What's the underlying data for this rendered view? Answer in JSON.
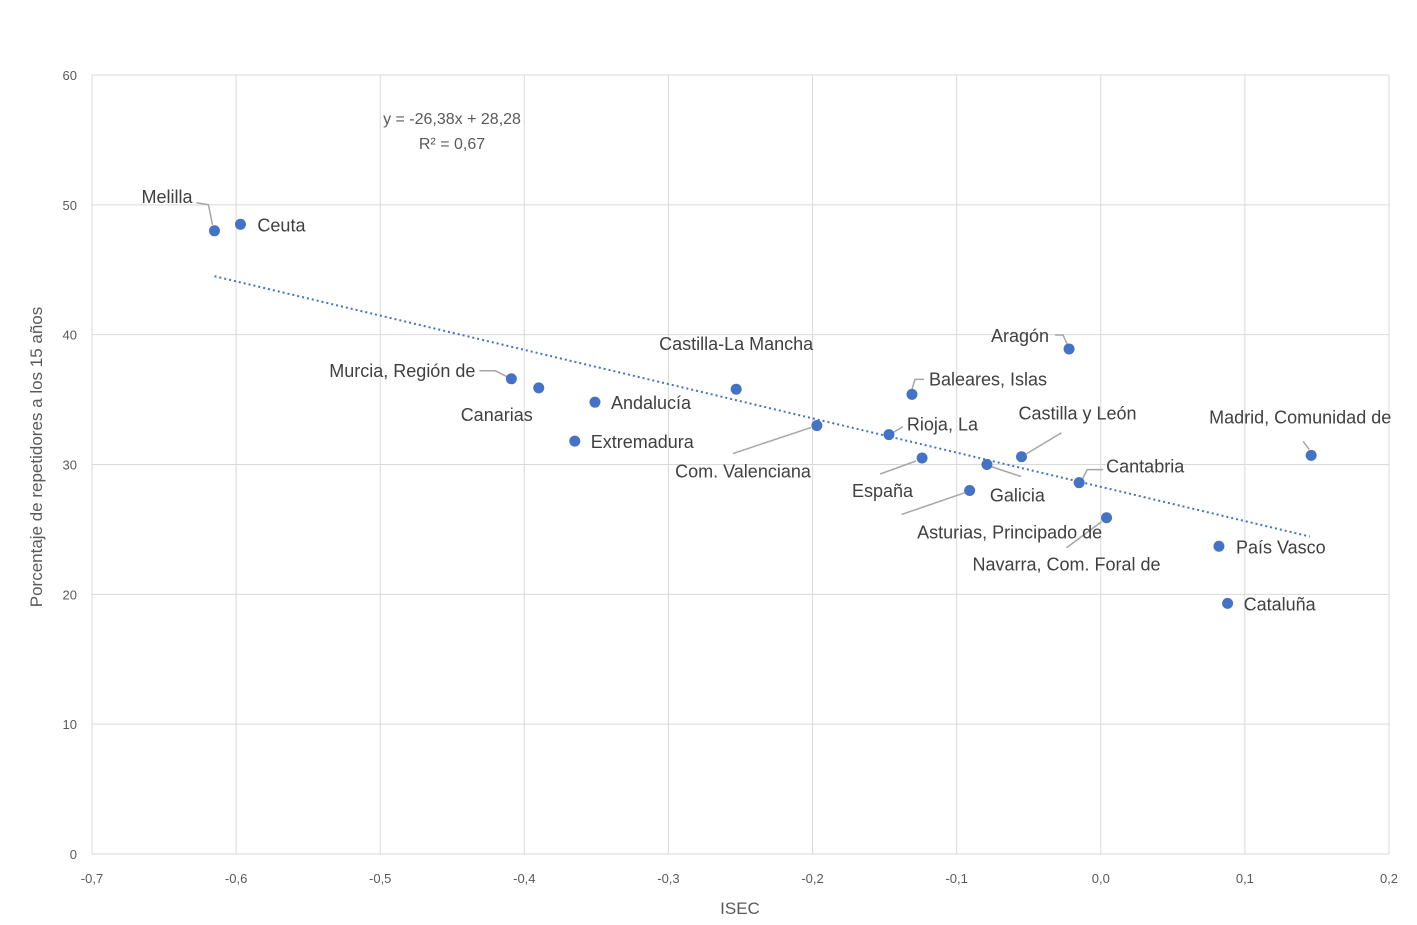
{
  "chart_data": {
    "type": "scatter",
    "xlabel": "ISEC",
    "ylabel": "Porcentaje de repetidores a los 15 años",
    "xlim": [
      -0.7,
      0.2
    ],
    "ylim": [
      0,
      60
    ],
    "x_ticks": [
      "-0,7",
      "-0,6",
      "-0,5",
      "-0,4",
      "-0,3",
      "-0,2",
      "-0,1",
      "0,0",
      "0,1",
      "0,2"
    ],
    "y_ticks": [
      "0",
      "10",
      "20",
      "30",
      "40",
      "50",
      "60"
    ],
    "grid": true,
    "legend": "none",
    "trendline": {
      "slope": -26.38,
      "intercept": 28.28,
      "x_range": [
        -0.615,
        0.145
      ],
      "equation": "y = -26,38x + 28,28",
      "r2": "R² = 0,67"
    },
    "points": [
      {
        "label": "Melilla",
        "x": -0.615,
        "y": 48.0
      },
      {
        "label": "Ceuta",
        "x": -0.597,
        "y": 48.5
      },
      {
        "label": "Murcia, Región de",
        "x": -0.409,
        "y": 36.6
      },
      {
        "label": "Canarias",
        "x": -0.39,
        "y": 35.9
      },
      {
        "label": "Andalucía",
        "x": -0.351,
        "y": 34.8
      },
      {
        "label": "Extremadura",
        "x": -0.365,
        "y": 31.8
      },
      {
        "label": "Castilla-La Mancha",
        "x": -0.253,
        "y": 35.8
      },
      {
        "label": "Com. Valenciana",
        "x": -0.197,
        "y": 33.0
      },
      {
        "label": "Baleares, Islas",
        "x": -0.131,
        "y": 35.4
      },
      {
        "label": "Rioja, La",
        "x": -0.147,
        "y": 32.3
      },
      {
        "label": "España",
        "x": -0.124,
        "y": 30.5
      },
      {
        "label": "Galicia",
        "x": -0.079,
        "y": 30.0
      },
      {
        "label": "Asturias, Principado de",
        "x": -0.091,
        "y": 28.0
      },
      {
        "label": "Aragón",
        "x": -0.022,
        "y": 38.9
      },
      {
        "label": "Castilla y León",
        "x": -0.055,
        "y": 30.6
      },
      {
        "label": "Cantabria",
        "x": -0.015,
        "y": 28.6
      },
      {
        "label": "Navarra, Com. Foral de",
        "x": 0.004,
        "y": 25.9
      },
      {
        "label": "Madrid, Comunidad de",
        "x": 0.146,
        "y": 30.7
      },
      {
        "label": "País Vasco",
        "x": 0.082,
        "y": 23.7
      },
      {
        "label": "Cataluña",
        "x": 0.088,
        "y": 19.3
      }
    ],
    "colors": {
      "marker": "#4472C4",
      "trendline": "#4472C4",
      "grid": "#d9d9d9",
      "text": "#404040",
      "leader": "#a6a6a6"
    }
  }
}
